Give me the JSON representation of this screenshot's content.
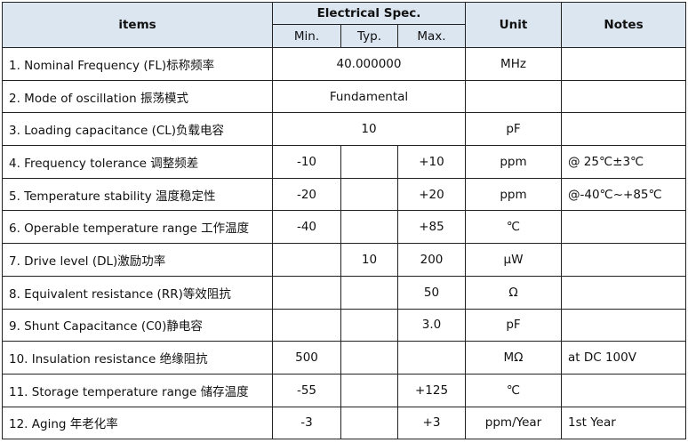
{
  "header": {
    "items": "items",
    "electrical_spec": "Electrical Spec.",
    "min": "Min.",
    "typ": "Typ.",
    "max": "Max.",
    "unit": "Unit",
    "notes": "Notes"
  },
  "header_bg": "#dce6f1",
  "rows": [
    {
      "item": "1. Nominal Frequency (FL)标称频率",
      "span": "40.000000",
      "unit": "MHz",
      "notes": ""
    },
    {
      "item": "2. Mode of oscillation 振荡模式",
      "span": "Fundamental",
      "unit": "",
      "notes": ""
    },
    {
      "item": "3. Loading capacitance (CL)负载电容",
      "span": "10",
      "unit": "pF",
      "notes": ""
    },
    {
      "item": "4. Frequency tolerance 调整频差",
      "min": "-10",
      "typ": "",
      "max": "+10",
      "unit": "ppm",
      "notes": "@ 25℃±3℃"
    },
    {
      "item": "5. Temperature stability 温度稳定性",
      "min": "-20",
      "typ": "",
      "max": "+20",
      "unit": "ppm",
      "notes": "@-40℃~+85℃"
    },
    {
      "item": "6. Operable temperature range 工作温度",
      "min": "-40",
      "typ": "",
      "max": "+85",
      "unit": "℃",
      "notes": ""
    },
    {
      "item": "7. Drive level (DL)激励功率",
      "min": "",
      "typ": "10",
      "max": "200",
      "unit": "μW",
      "notes": ""
    },
    {
      "item": "8. Equivalent resistance (RR)等效阻抗",
      "min": "",
      "typ": "",
      "max": "50",
      "unit": "Ω",
      "notes": ""
    },
    {
      "item": "9. Shunt Capacitance (C0)静电容",
      "min": "",
      "typ": "",
      "max": "3.0",
      "unit": "pF",
      "notes": ""
    },
    {
      "item": "10. Insulation resistance 绝缘阻抗",
      "min": "500",
      "typ": "",
      "max": "",
      "unit": "MΩ",
      "notes": "at DC 100V"
    },
    {
      "item": "11. Storage temperature range 储存温度",
      "min": "-55",
      "typ": "",
      "max": "+125",
      "unit": "℃",
      "notes": ""
    },
    {
      "item": "12. Aging 年老化率",
      "min": "-3",
      "typ": "",
      "max": "+3",
      "unit": "ppm/Year",
      "notes": "1st Year"
    }
  ]
}
